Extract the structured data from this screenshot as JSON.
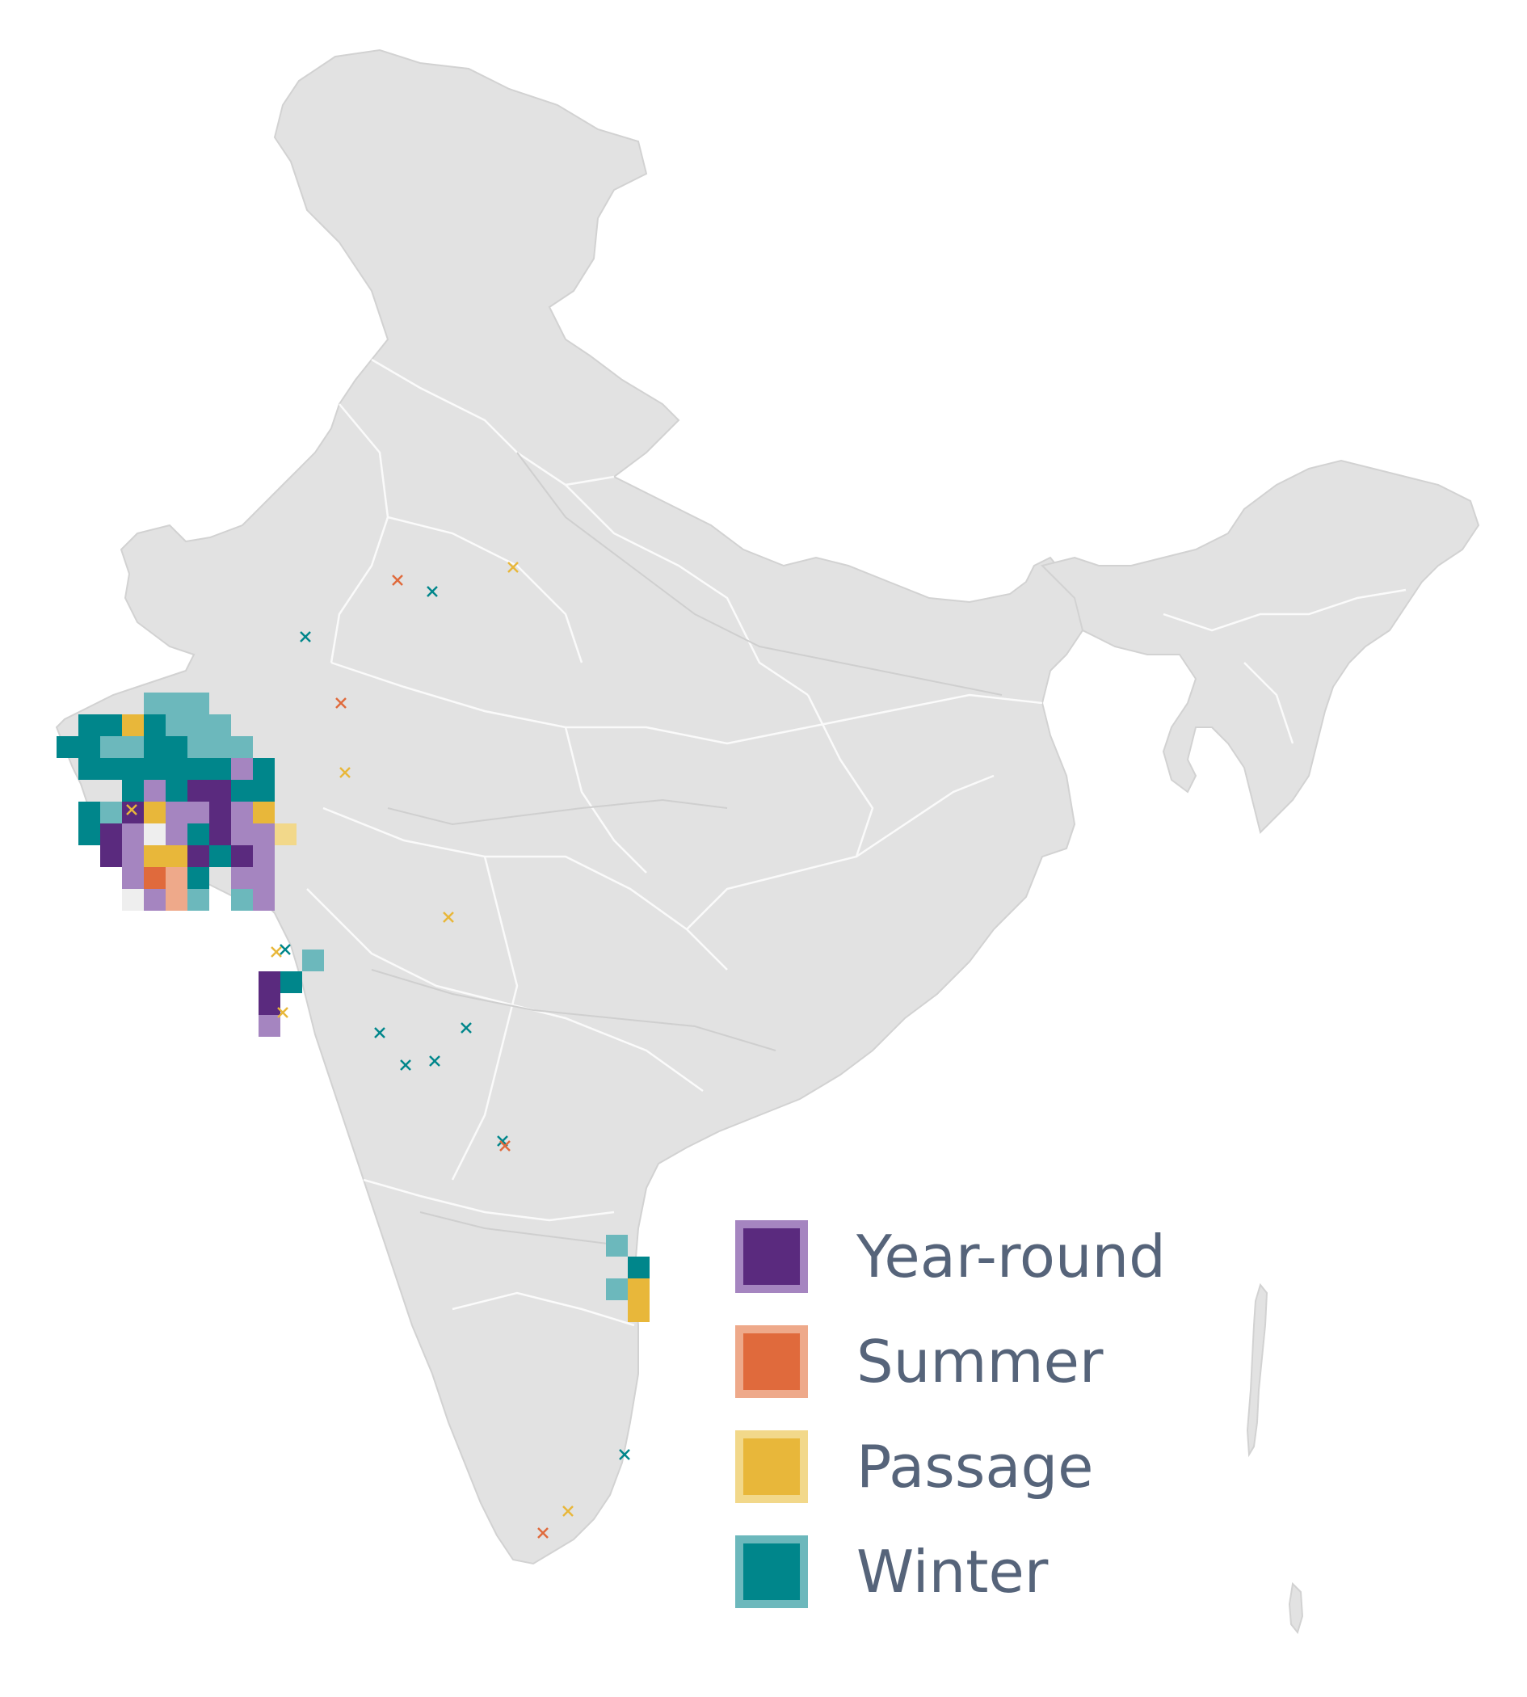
{
  "map": {
    "region": "India",
    "basemap_color": "#e2e2e2",
    "border_color": "#ffffff"
  },
  "legend": {
    "items": [
      {
        "label": "Year-round",
        "inner_color": "#5a2a7e",
        "outer_color": "#a585c0"
      },
      {
        "label": "Summer",
        "inner_color": "#e06a3c",
        "outer_color": "#eea98a"
      },
      {
        "label": "Passage",
        "inner_color": "#e8b73a",
        "outer_color": "#f2d88a"
      },
      {
        "label": "Winter",
        "inner_color": "#00868b",
        "outer_color": "#6cb8bc"
      }
    ]
  },
  "season_colors": {
    "year_round": "#5a2a7e",
    "year_round_light": "#a585c0",
    "summer": "#e06a3c",
    "summer_light": "#eea98a",
    "passage": "#e8b73a",
    "passage_light": "#f2d88a",
    "winter": "#00868b",
    "winter_light": "#6cb8bc"
  }
}
